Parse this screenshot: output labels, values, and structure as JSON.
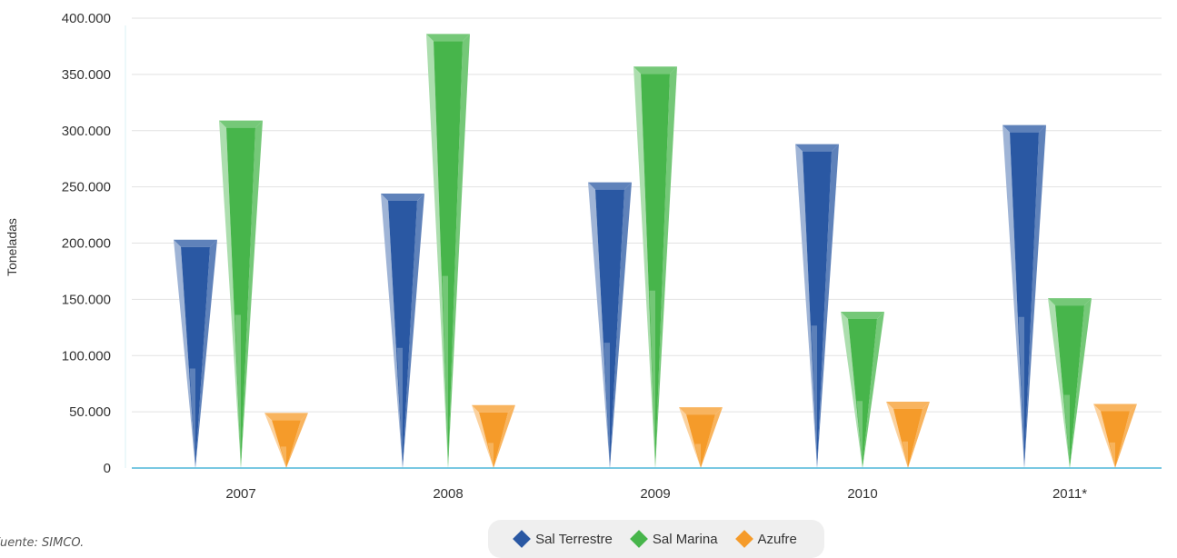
{
  "chart_data": {
    "type": "bar",
    "categories": [
      "2007",
      "2008",
      "2009",
      "2010",
      "2011*"
    ],
    "series": [
      {
        "name": "Sal Terrestre",
        "color": "#2a58a3",
        "values": [
          203000,
          244000,
          254000,
          288000,
          305000
        ]
      },
      {
        "name": "Sal Marina",
        "color": "#47b54b",
        "values": [
          309000,
          386000,
          357000,
          139000,
          151000
        ]
      },
      {
        "name": "Azufre",
        "color": "#f59b2a",
        "values": [
          49000,
          56000,
          54000,
          59000,
          57000
        ]
      }
    ],
    "y_ticks": [
      "0",
      "50.000",
      "100.000",
      "150.000",
      "200.000",
      "250.000",
      "300.000",
      "350.000",
      "400.000"
    ],
    "ylim": [
      0,
      400000
    ],
    "ylabel": "Toneladas",
    "xlabel": "",
    "grid": true,
    "legend_position": "bottom"
  },
  "source_note": "Fuente: SIMCO."
}
